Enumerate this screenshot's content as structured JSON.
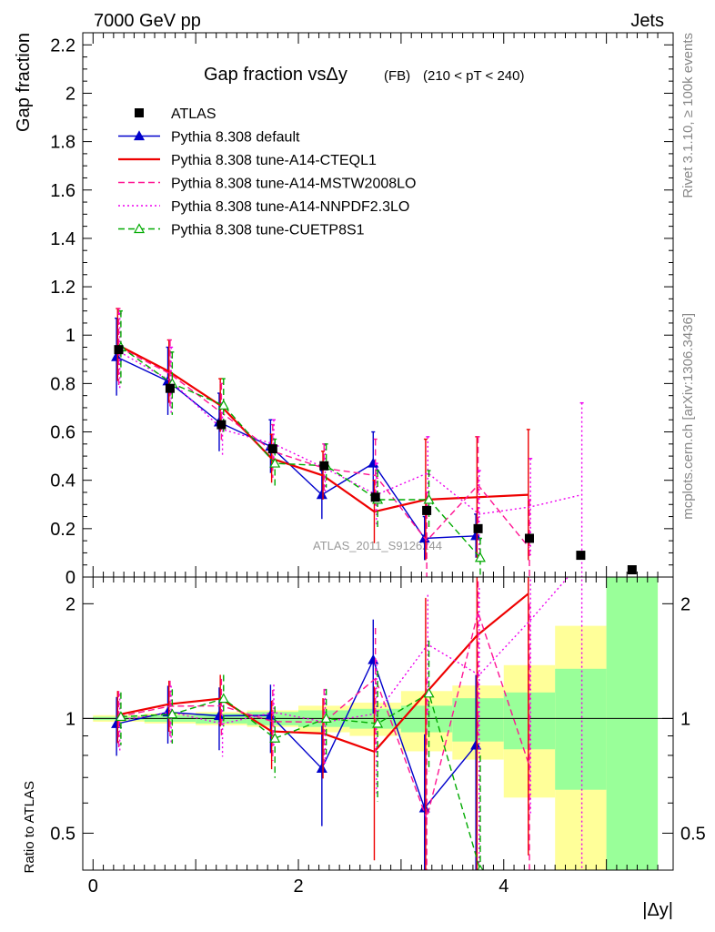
{
  "header": {
    "left": "7000 GeV pp",
    "right": "Jets",
    "side_top": "Rivet 3.1.10, ≥ 100k events",
    "side_bottom": "mcplots.cern.ch [arXiv:1306.3436]"
  },
  "chart_data": {
    "type": "scatter",
    "title": "Gap fraction vsΔy",
    "title_suffix": "(FB)",
    "title_cut": "(210 < pT < 240)",
    "watermark": "ATLAS_2011_S9126244",
    "xlabel": "|Δy|",
    "ylabel": "Gap fraction",
    "ratio_ylabel": "Ratio to ATLAS",
    "xlim": [
      -0.1,
      5.65
    ],
    "ylim": [
      0,
      2.25
    ],
    "ratio_ylim": [
      0.4,
      2.35
    ],
    "ratio_scale": "log",
    "x_ticks": [
      "0",
      "2",
      "4"
    ],
    "y_ticks": [
      "0",
      "0.2",
      "0.4",
      "0.6",
      "0.8",
      "1",
      "1.2",
      "1.4",
      "1.6",
      "1.8",
      "2",
      "2.2"
    ],
    "ratio_ticks": [
      "0.5",
      "1",
      "2"
    ],
    "legend_position": "top-left",
    "x": [
      0.25,
      0.75,
      1.25,
      1.75,
      2.25,
      2.75,
      3.25,
      3.75,
      4.25,
      4.75,
      5.25
    ],
    "data": {
      "name": "ATLAS",
      "values": [
        0.94,
        0.78,
        0.63,
        0.53,
        0.46,
        0.33,
        0.275,
        0.2,
        0.16,
        0.09,
        0.03
      ],
      "band_inner_rel": [
        0.01,
        0.02,
        0.03,
        0.04,
        0.05,
        0.06,
        0.08,
        0.13,
        0.17,
        0.35,
        1.5
      ],
      "band_outer_rel": [
        0.02,
        0.03,
        0.04,
        0.05,
        0.08,
        0.1,
        0.18,
        0.22,
        0.38,
        0.75,
        2.0
      ]
    },
    "series": [
      {
        "name": "Pythia 8.308 default",
        "color": "#0000cc",
        "dash": "solid",
        "marker": "triangle-filled",
        "values": [
          0.91,
          0.81,
          0.64,
          0.54,
          0.34,
          0.47,
          0.16,
          0.17
        ],
        "errors": [
          0.16,
          0.14,
          0.12,
          0.11,
          0.1,
          0.13,
          0.09,
          0.09
        ]
      },
      {
        "name": "Pythia 8.308 tune-A14-CTEQL1",
        "color": "#ee0000",
        "dash": "solid",
        "marker": "none",
        "values": [
          0.96,
          0.85,
          0.71,
          0.49,
          0.42,
          0.27,
          0.32,
          0.33,
          0.34
        ],
        "errors": [
          0.15,
          0.13,
          0.11,
          0.1,
          0.1,
          0.13,
          0.25,
          0.25,
          0.27
        ]
      },
      {
        "name": "Pythia 8.308 tune-A14-MSTW2008LO",
        "color": "#ff1493",
        "dash": "dashed",
        "marker": "none",
        "values": [
          0.95,
          0.84,
          0.68,
          0.52,
          0.45,
          0.42,
          0.15,
          0.38,
          0.12
        ],
        "errors": [
          0.16,
          0.14,
          0.12,
          0.11,
          0.1,
          0.15,
          0.2,
          0.2,
          0.2
        ]
      },
      {
        "name": "Pythia 8.308 tune-A14-NNPDF2.3LO",
        "color": "#ee00ee",
        "dash": "dotted",
        "marker": "none",
        "values": [
          0.93,
          0.81,
          0.61,
          0.55,
          0.45,
          0.34,
          0.43,
          0.26,
          0.29,
          0.34
        ],
        "errors": [
          0.16,
          0.14,
          0.11,
          0.1,
          0.1,
          0.13,
          0.15,
          0.18,
          0.2,
          0.38
        ]
      },
      {
        "name": "Pythia 8.308 tune-CUETP8S1",
        "color": "#00aa00",
        "dash": "dashed",
        "marker": "triangle-open",
        "values": [
          0.95,
          0.8,
          0.71,
          0.47,
          0.46,
          0.32,
          0.32,
          0.08
        ],
        "errors": [
          0.15,
          0.13,
          0.11,
          0.1,
          0.09,
          0.12,
          0.12,
          0.08
        ]
      }
    ]
  }
}
